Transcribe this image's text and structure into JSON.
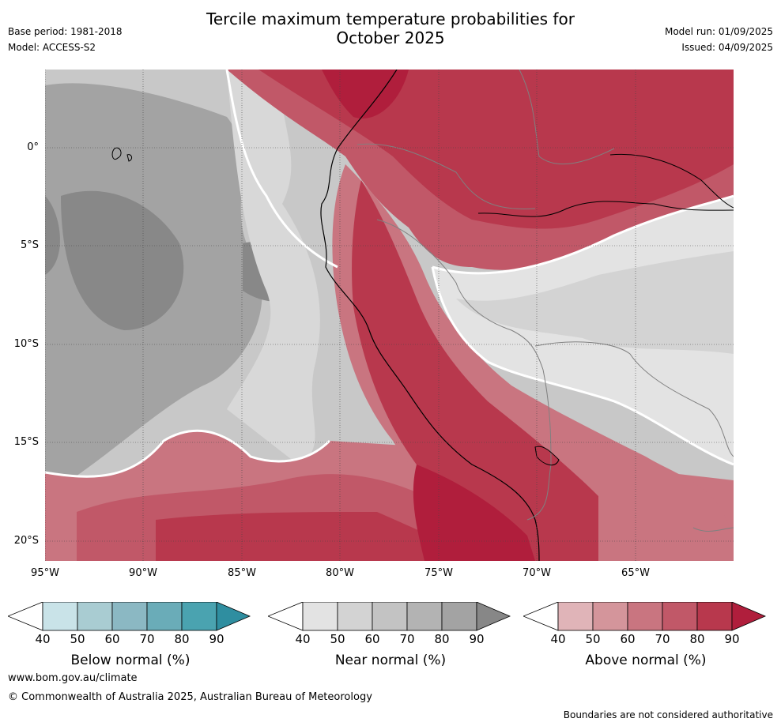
{
  "title_line1": "Tercile maximum temperature probabilities for",
  "title_line2": "October 2025",
  "header_left": {
    "base_period": "Base period: 1981-2018",
    "model": "Model: ACCESS-S2"
  },
  "header_right": {
    "model_run": "Model run: 01/09/2025",
    "issued": "Issued: 04/09/2025"
  },
  "lat_labels": [
    "0°",
    "5°S",
    "10°S",
    "15°S",
    "20°S"
  ],
  "lon_labels": [
    "95°W",
    "90°W",
    "85°W",
    "80°W",
    "75°W",
    "70°W",
    "65°W"
  ],
  "colorbars": {
    "below": {
      "label": "Below normal (%)",
      "ticks": [
        "40",
        "50",
        "60",
        "70",
        "80",
        "90"
      ],
      "colors": [
        "#c9e3e8",
        "#a9ccd2",
        "#8bb8c3",
        "#6aacb8",
        "#4aa3b0",
        "#2f8ea0"
      ]
    },
    "near": {
      "label": "Near normal (%)",
      "ticks": [
        "40",
        "50",
        "60",
        "70",
        "80",
        "90"
      ],
      "colors": [
        "#e3e3e3",
        "#d3d3d3",
        "#c3c3c3",
        "#b3b3b3",
        "#a3a3a3",
        "#878787"
      ]
    },
    "above": {
      "label": "Above normal (%)",
      "ticks": [
        "40",
        "50",
        "60",
        "70",
        "80",
        "90"
      ],
      "colors": [
        "#e0b4b8",
        "#d4959b",
        "#c97580",
        "#c15868",
        "#b8384d",
        "#b01e3c"
      ]
    }
  },
  "footer": {
    "url": "www.bom.gov.au/climate",
    "copyright": "© Commonwealth of Australia 2025, Australian Bureau of Meteorology",
    "note": "Boundaries are not considered authoritative"
  }
}
